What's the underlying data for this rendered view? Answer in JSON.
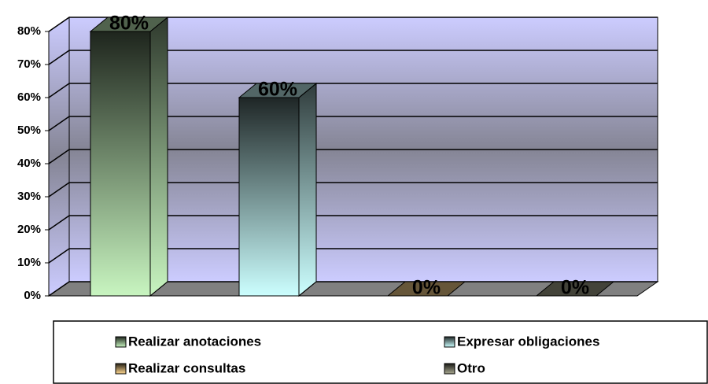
{
  "chart_data": {
    "type": "bar",
    "categories": [
      "Realizar anotaciones",
      "Expresar obligaciones",
      "Realizar consultas",
      "Otro"
    ],
    "values": [
      80,
      60,
      0,
      0
    ],
    "value_labels": [
      "80%",
      "60%",
      "0%",
      "0%"
    ],
    "colors": [
      "#c8f5c0",
      "#ccffff",
      "#ffd890",
      "#a8a890"
    ],
    "ylim": [
      0,
      80
    ],
    "yticks": [
      {
        "value": 0,
        "label": "0%"
      },
      {
        "value": 10,
        "label": "10%"
      },
      {
        "value": 20,
        "label": "20%"
      },
      {
        "value": 30,
        "label": "30%"
      },
      {
        "value": 40,
        "label": "40%"
      },
      {
        "value": 50,
        "label": "50%"
      },
      {
        "value": 60,
        "label": "60%"
      },
      {
        "value": 70,
        "label": "70%"
      },
      {
        "value": 80,
        "label": "80%"
      }
    ],
    "grid": true
  }
}
